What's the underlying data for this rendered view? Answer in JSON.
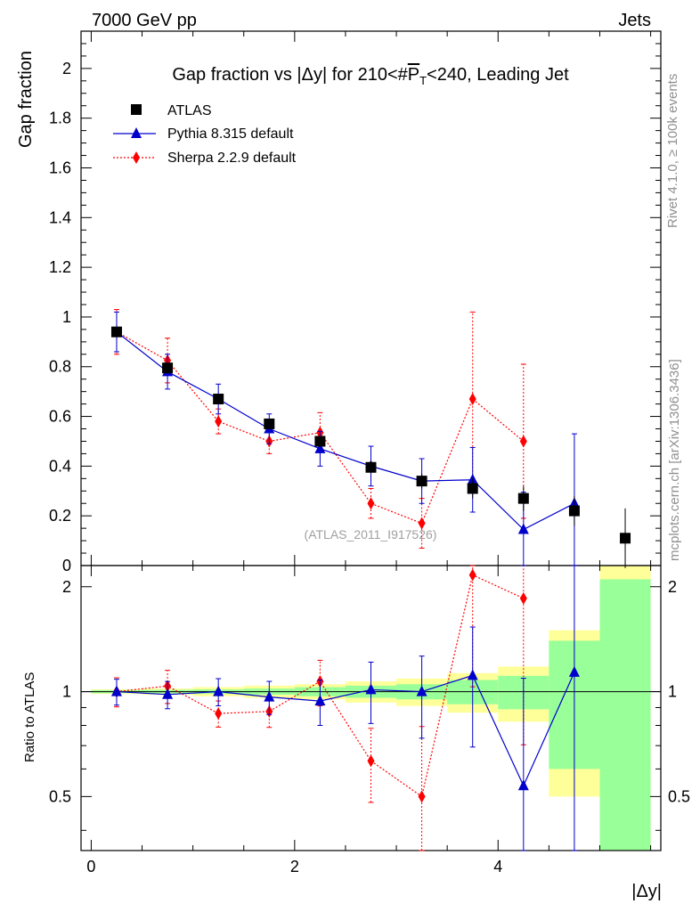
{
  "header": {
    "left": "7000 GeV pp",
    "right": "Jets"
  },
  "side": {
    "rivet": "Rivet 4.1.0, ≥ 100k events",
    "mcplots": "mcplots.cern.ch [arXiv:1306.3436]"
  },
  "chart_data": {
    "type": "scatter",
    "title": "Gap fraction vs |Δy| for 210<#P_T<240, Leading Jet",
    "title_parts": {
      "pre": "Gap fraction vs |",
      "delta": "Δ",
      "mid": "y| for 210<#",
      "p": "P",
      "t": "T",
      "post": "<240, Leading Jet"
    },
    "xlabel": "|Δy|",
    "ylabel": "Gap fraction",
    "ratio_ylabel": "Ratio to ATLAS",
    "watermark": "(ATLAS_2011_I917526)",
    "xlim": [
      -0.1,
      5.6
    ],
    "ylim": [
      0,
      2.15
    ],
    "ratio_ylim": [
      0.35,
      2.3
    ],
    "x_ticks": [
      0,
      2,
      4
    ],
    "y_ticks": [
      0,
      0.2,
      0.4,
      0.6,
      0.8,
      1,
      1.2,
      1.4,
      1.6,
      1.8,
      2
    ],
    "ratio_ticks": [
      0.5,
      1,
      2
    ],
    "bin_edges": [
      0,
      0.5,
      1.0,
      1.5,
      2.0,
      2.5,
      3.0,
      3.5,
      4.0,
      4.5,
      5.0,
      5.5
    ],
    "series": [
      {
        "name": "ATLAS",
        "color": "#000000",
        "marker": "square",
        "x": [
          0.25,
          0.75,
          1.25,
          1.75,
          2.25,
          2.75,
          3.25,
          3.75,
          4.25,
          4.75,
          5.25
        ],
        "y": [
          0.94,
          0.795,
          0.67,
          0.57,
          0.5,
          0.395,
          0.34,
          0.31,
          0.27,
          0.22,
          0.11
        ],
        "err": [
          0.012,
          0.012,
          0.015,
          0.017,
          0.02,
          0.025,
          0.03,
          0.04,
          0.05,
          0.06,
          0.12
        ]
      },
      {
        "name": "Pythia 8.315 default",
        "color": "#0000cc",
        "marker": "triangle",
        "linestyle": "solid",
        "x": [
          0.25,
          0.75,
          1.25,
          1.75,
          2.25,
          2.75,
          3.25,
          3.75,
          4.25,
          4.75
        ],
        "y": [
          0.94,
          0.78,
          0.67,
          0.55,
          0.47,
          0.4,
          0.34,
          0.345,
          0.145,
          0.25
        ],
        "err": [
          0.08,
          0.07,
          0.06,
          0.06,
          0.07,
          0.08,
          0.09,
          0.13,
          0.15,
          0.28
        ]
      },
      {
        "name": "Sherpa 2.2.9 default",
        "color": "#ff0000",
        "marker": "diamond",
        "linestyle": "dotted",
        "x": [
          0.25,
          0.75,
          1.25,
          1.75,
          2.25,
          2.75,
          3.25,
          3.75,
          4.25
        ],
        "y": [
          0.94,
          0.825,
          0.58,
          0.5,
          0.535,
          0.25,
          0.17,
          0.67,
          0.5
        ],
        "err": [
          0.09,
          0.09,
          0.05,
          0.05,
          0.08,
          0.06,
          0.1,
          0.35,
          0.31
        ]
      }
    ],
    "ratio_bands": {
      "yellow_half": [
        0.015,
        0.02,
        0.03,
        0.04,
        0.05,
        0.07,
        0.09,
        0.13,
        0.18,
        0.5,
        1.3
      ],
      "green_half": [
        0.01,
        0.012,
        0.015,
        0.02,
        0.03,
        0.04,
        0.05,
        0.08,
        0.11,
        0.4,
        1.1
      ]
    }
  }
}
